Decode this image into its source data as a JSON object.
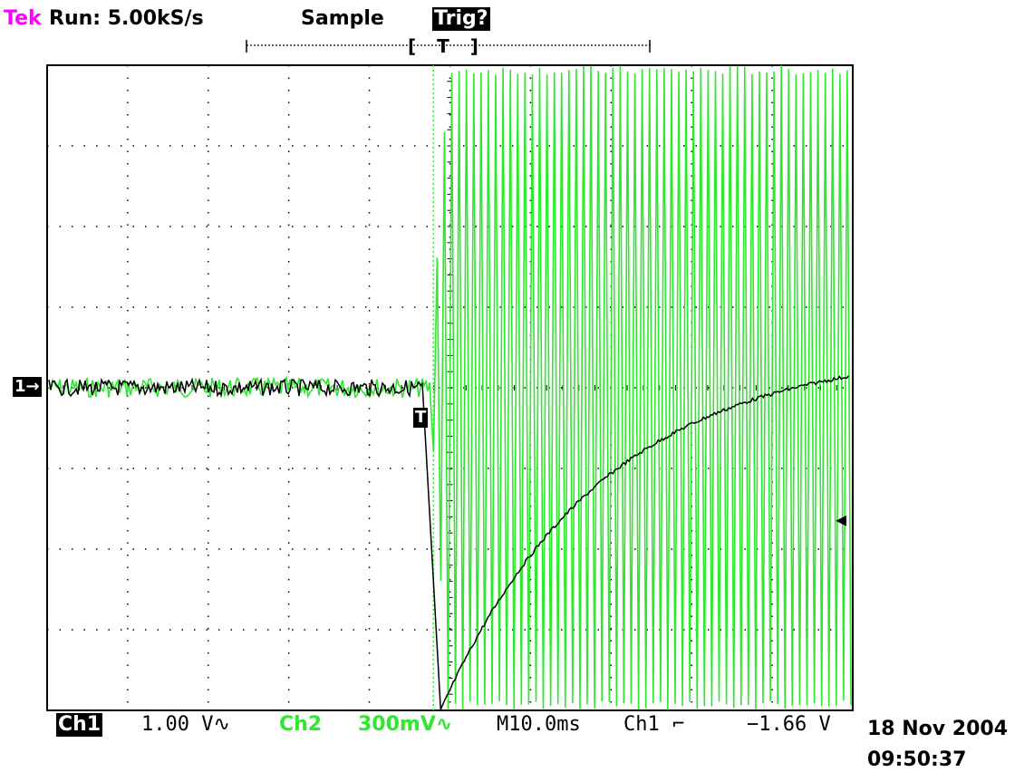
{
  "header": {
    "brand": "Tek",
    "run_status": "Run: 5.00kS/s",
    "acq_mode": "Sample",
    "trigger_status": "Trig?",
    "record_bracket": "[ T ]"
  },
  "markers": {
    "ch1_ground": "1→",
    "trigger_point": "T",
    "trigger_level": "◀"
  },
  "footer": {
    "ch1_label": "Ch1",
    "ch1_scale": "1.00 V∿",
    "ch2_label": "Ch2",
    "ch2_scale": "300mV∿",
    "timebase": "M10.0ms",
    "trig_source": "Ch1",
    "trig_slope": "⌐",
    "trig_level": "−1.66 V",
    "date": "18 Nov 2004",
    "time": "09:50:37"
  },
  "colors": {
    "ch1": "#000000",
    "ch2": "#2ee82e",
    "brand": "#ff00ff",
    "grid": "#000000"
  },
  "chart_data": {
    "type": "line",
    "title": "",
    "xlabel": "",
    "ylabel": "",
    "grid": true,
    "x_divisions": 10,
    "y_divisions": 8,
    "time_per_div_ms": 10.0,
    "trigger_time_div": 4.75,
    "series": [
      {
        "name": "Ch1",
        "scale": "1.00 V/div",
        "shape": "flat with small noise, drops sharply at trigger, then exponential recovery",
        "baseline_div": 0.0,
        "drop_min_div": -4.0,
        "recovery_end_div": 0.5,
        "recovery_tau_div": 2.0
      },
      {
        "name": "Ch2",
        "scale": "300mV/div",
        "shape": "flat with noise before trigger, then full-scale oscillation after trigger",
        "baseline_div": 0.0,
        "oscillation_amplitude_div": 4.0,
        "oscillation_cycles_per_div": 11
      }
    ]
  }
}
